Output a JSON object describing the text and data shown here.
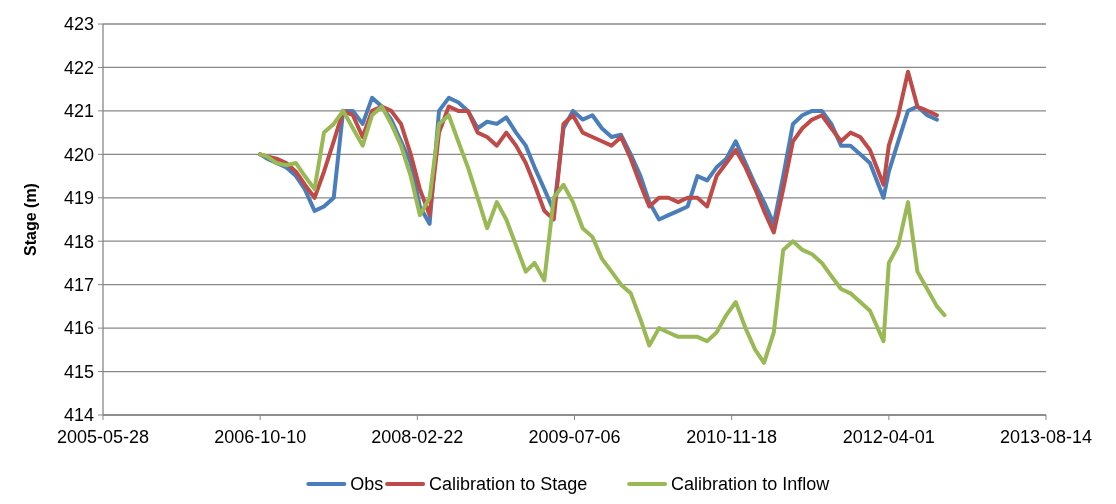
{
  "chart_data": {
    "type": "line",
    "ylabel": "Stage (m)",
    "x": [
      "2006-10-10",
      "2006-11-01",
      "2006-12-01",
      "2007-01-01",
      "2007-02-01",
      "2007-03-01",
      "2007-04-01",
      "2007-05-01",
      "2007-06-01",
      "2007-07-01",
      "2007-08-01",
      "2007-09-01",
      "2007-10-01",
      "2007-11-01",
      "2007-12-01",
      "2008-01-01",
      "2008-02-01",
      "2008-03-01",
      "2008-04-01",
      "2008-05-01",
      "2008-06-01",
      "2008-07-01",
      "2008-08-01",
      "2008-09-01",
      "2008-10-01",
      "2008-11-01",
      "2008-12-01",
      "2009-01-01",
      "2009-02-01",
      "2009-03-01",
      "2009-04-01",
      "2009-05-01",
      "2009-06-01",
      "2009-07-01",
      "2009-08-01",
      "2009-09-01",
      "2009-10-01",
      "2009-11-01",
      "2009-12-01",
      "2010-01-01",
      "2010-02-01",
      "2010-03-01",
      "2010-04-01",
      "2010-05-01",
      "2010-06-01",
      "2010-07-01",
      "2010-08-01",
      "2010-09-01",
      "2010-10-01",
      "2010-11-01",
      "2010-12-01",
      "2011-01-01",
      "2011-02-01",
      "2011-03-01",
      "2011-04-01",
      "2011-05-01",
      "2011-06-01",
      "2011-07-01",
      "2011-08-01",
      "2011-09-01",
      "2011-10-01",
      "2011-11-01",
      "2011-12-01",
      "2012-01-01",
      "2012-02-01",
      "2012-03-15",
      "2012-04-01",
      "2012-05-01",
      "2012-06-01",
      "2012-07-01",
      "2012-08-01",
      "2012-09-01",
      "2012-09-25"
    ],
    "series": [
      {
        "name": "Obs",
        "color": "#4a7ebb",
        "values": [
          420.0,
          419.9,
          419.8,
          419.7,
          419.5,
          419.2,
          418.7,
          418.8,
          419.0,
          421.0,
          421.0,
          420.7,
          421.3,
          421.1,
          420.8,
          420.3,
          419.8,
          418.8,
          418.4,
          421.0,
          421.3,
          421.2,
          421.0,
          420.6,
          420.75,
          420.7,
          420.85,
          420.5,
          420.2,
          419.7,
          419.2,
          418.7,
          420.6,
          421.0,
          420.8,
          420.9,
          420.6,
          420.4,
          420.45,
          420.0,
          419.5,
          418.9,
          418.5,
          418.6,
          418.7,
          418.8,
          419.5,
          419.4,
          419.7,
          419.9,
          420.3,
          419.8,
          419.3,
          418.9,
          418.4,
          419.5,
          420.7,
          420.9,
          421.0,
          421.0,
          420.7,
          420.2,
          420.2,
          420.0,
          419.8,
          419.0,
          419.6,
          420.3,
          421.0,
          421.1,
          420.9,
          420.8,
          null
        ]
      },
      {
        "name": "Calibration to Stage",
        "color": "#be4b48",
        "values": [
          420.0,
          419.95,
          419.9,
          419.8,
          419.6,
          419.3,
          419.0,
          419.6,
          420.3,
          421.0,
          420.9,
          420.4,
          421.0,
          421.1,
          421.0,
          420.7,
          420.0,
          419.2,
          418.6,
          420.5,
          421.1,
          421.0,
          421.0,
          420.5,
          420.4,
          420.2,
          420.5,
          420.2,
          419.8,
          419.3,
          418.7,
          418.5,
          420.7,
          420.9,
          420.5,
          420.4,
          420.3,
          420.2,
          420.4,
          419.9,
          419.3,
          418.8,
          419.0,
          419.0,
          418.9,
          419.0,
          419.0,
          418.8,
          419.5,
          419.8,
          420.1,
          419.7,
          419.2,
          418.7,
          418.2,
          419.2,
          420.3,
          420.6,
          420.8,
          420.9,
          420.6,
          420.3,
          420.5,
          420.4,
          420.1,
          419.3,
          420.2,
          420.9,
          421.9,
          421.1,
          421.0,
          420.9,
          null
        ]
      },
      {
        "name": "Calibration to Inflow",
        "color": "#98b954",
        "values": [
          420.0,
          419.95,
          419.8,
          419.75,
          419.8,
          419.5,
          419.2,
          420.5,
          420.7,
          421.0,
          420.6,
          420.2,
          420.9,
          421.1,
          420.7,
          420.2,
          419.5,
          418.6,
          419.0,
          420.7,
          420.9,
          420.3,
          419.7,
          419.0,
          418.3,
          418.9,
          418.5,
          417.9,
          417.3,
          417.5,
          417.1,
          419.0,
          419.3,
          418.9,
          418.3,
          418.1,
          417.6,
          417.3,
          417.0,
          416.8,
          416.2,
          415.6,
          416.0,
          415.9,
          415.8,
          415.8,
          415.8,
          415.7,
          415.9,
          416.3,
          416.6,
          416.0,
          415.5,
          415.2,
          415.9,
          417.8,
          418.0,
          417.8,
          417.7,
          417.5,
          417.2,
          416.9,
          416.8,
          416.6,
          416.4,
          415.7,
          417.5,
          417.9,
          418.9,
          417.3,
          416.9,
          416.5,
          416.3
        ]
      }
    ],
    "xlim": [
      "2005-05-28",
      "2013-08-14"
    ],
    "xticks": [
      {
        "value": "2005-05-28",
        "label": "2005-05-28"
      },
      {
        "value": "2006-10-10",
        "label": "2006-10-10"
      },
      {
        "value": "2008-02-22",
        "label": "2008-02-22"
      },
      {
        "value": "2009-07-06",
        "label": "2009-07-06"
      },
      {
        "value": "2010-11-18",
        "label": "2010-11-18"
      },
      {
        "value": "2012-04-01",
        "label": "2012-04-01"
      },
      {
        "value": "2013-08-14",
        "label": "2013-08-14"
      }
    ],
    "ylim": [
      414,
      423
    ],
    "yticks": [
      414,
      415,
      416,
      417,
      418,
      419,
      420,
      421,
      422,
      423
    ],
    "grid": "y",
    "legend": "bottom",
    "line_style": "solid",
    "marker": "none"
  }
}
